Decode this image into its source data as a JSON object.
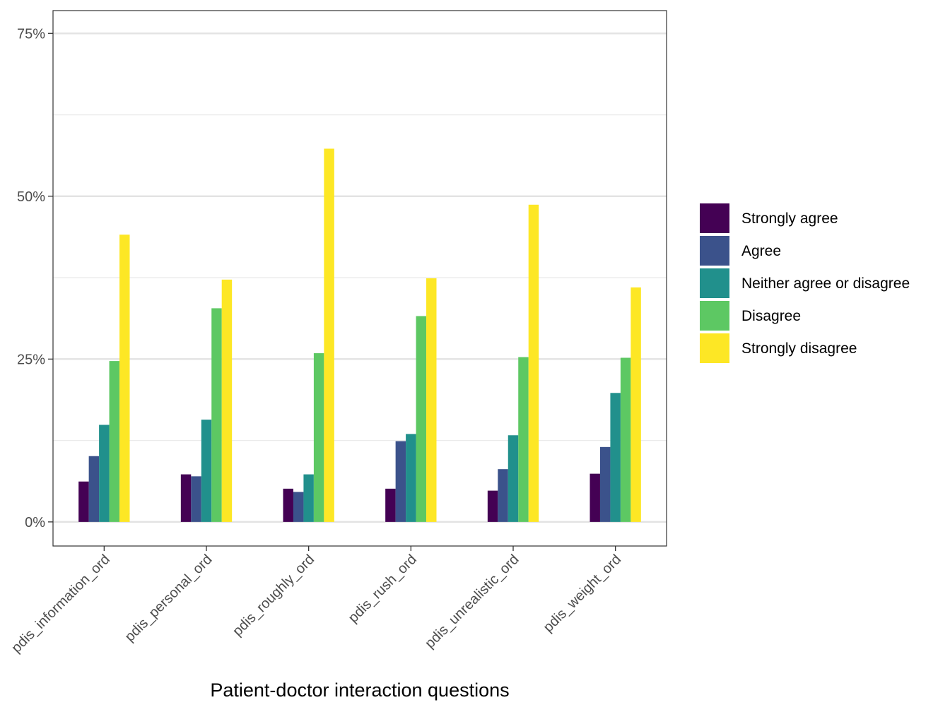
{
  "chart_data": {
    "type": "bar",
    "title": "",
    "xlabel": "Patient-doctor interaction questions",
    "ylabel": "",
    "ylim": [
      -0.037,
      0.785
    ],
    "yticks": [
      0,
      0.25,
      0.5,
      0.75
    ],
    "ytick_labels": [
      "0%",
      "25%",
      "50%",
      "75%"
    ],
    "grid": true,
    "legend_position": "right",
    "categories": [
      "pdis_information_ord",
      "pdis_personal_ord",
      "pdis_roughly_ord",
      "pdis_rush_ord",
      "pdis_unrealistic_ord",
      "pdis_weight_ord"
    ],
    "series": [
      {
        "name": "Strongly agree",
        "color": "#440154",
        "values": [
          0.062,
          0.073,
          0.051,
          0.051,
          0.048,
          0.074
        ]
      },
      {
        "name": "Agree",
        "color": "#3b528b",
        "values": [
          0.101,
          0.07,
          0.046,
          0.124,
          0.081,
          0.115
        ]
      },
      {
        "name": "Neither agree or disagree",
        "color": "#21908c",
        "values": [
          0.149,
          0.157,
          0.073,
          0.135,
          0.133,
          0.198
        ]
      },
      {
        "name": "Disagree",
        "color": "#5dc863",
        "values": [
          0.247,
          0.328,
          0.259,
          0.316,
          0.253,
          0.252
        ]
      },
      {
        "name": "Strongly disagree",
        "color": "#fde725",
        "values": [
          0.441,
          0.372,
          0.573,
          0.374,
          0.487,
          0.36
        ]
      }
    ]
  }
}
